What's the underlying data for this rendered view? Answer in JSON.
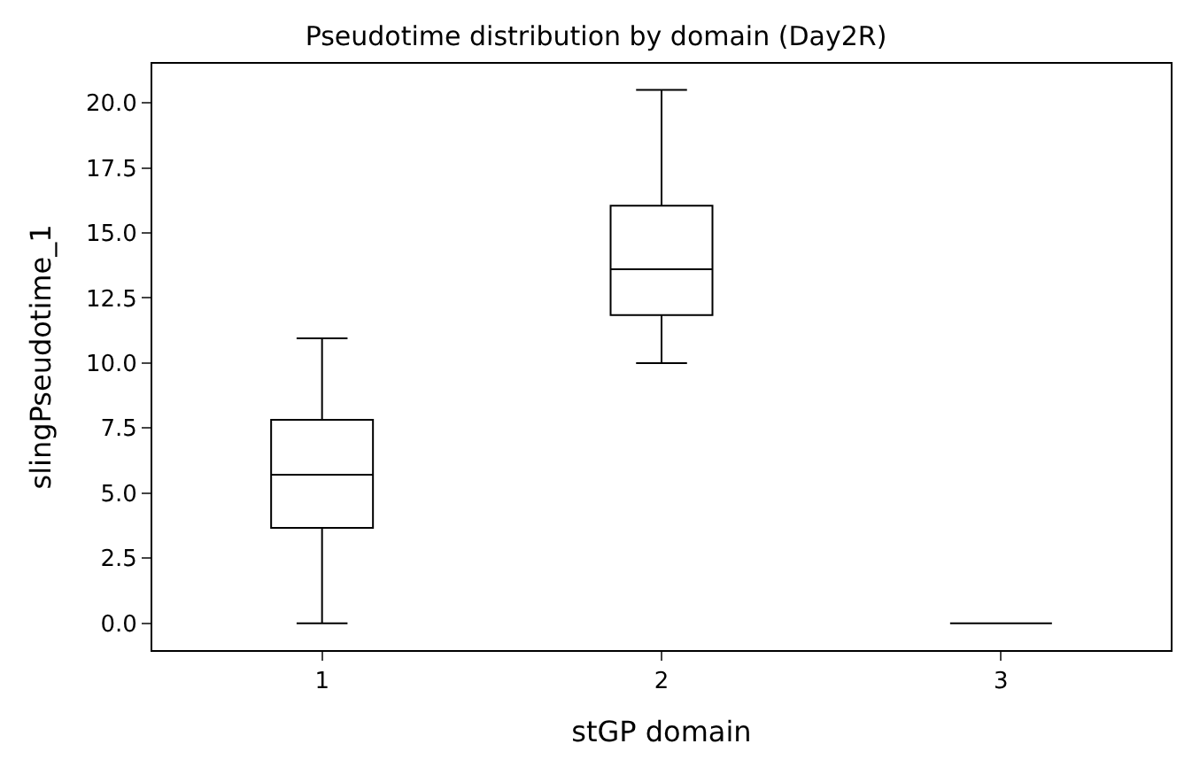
{
  "chart_data": {
    "type": "box",
    "title": "Pseudotime distribution by domain (Day2R)",
    "xlabel": "stGP domain",
    "ylabel": "slingPseudotime_1",
    "categories": [
      "1",
      "2",
      "3"
    ],
    "series": [
      {
        "color": "#000000",
        "boxes": [
          {
            "low": 0.0,
            "q1": 3.67,
            "median": 5.71,
            "q3": 7.82,
            "high": 10.95
          },
          {
            "low": 10.0,
            "q1": 11.84,
            "median": 13.6,
            "q3": 16.05,
            "high": 20.5
          },
          {
            "low": 0.0,
            "q1": 0.0,
            "median": 0.0,
            "q3": 0.0,
            "high": 0.0
          }
        ]
      }
    ],
    "ylim": [
      -1.03,
      21.5
    ],
    "yticks": [
      {
        "value": 0,
        "label": "0.0"
      },
      {
        "value": 2.5,
        "label": "2.5"
      },
      {
        "value": 5,
        "label": "5.0"
      },
      {
        "value": 7.5,
        "label": "7.5"
      },
      {
        "value": 10,
        "label": "10.0"
      },
      {
        "value": 12.5,
        "label": "12.5"
      },
      {
        "value": 15,
        "label": "15.0"
      },
      {
        "value": 17.5,
        "label": "17.5"
      },
      {
        "value": 20,
        "label": "20.0"
      }
    ]
  }
}
